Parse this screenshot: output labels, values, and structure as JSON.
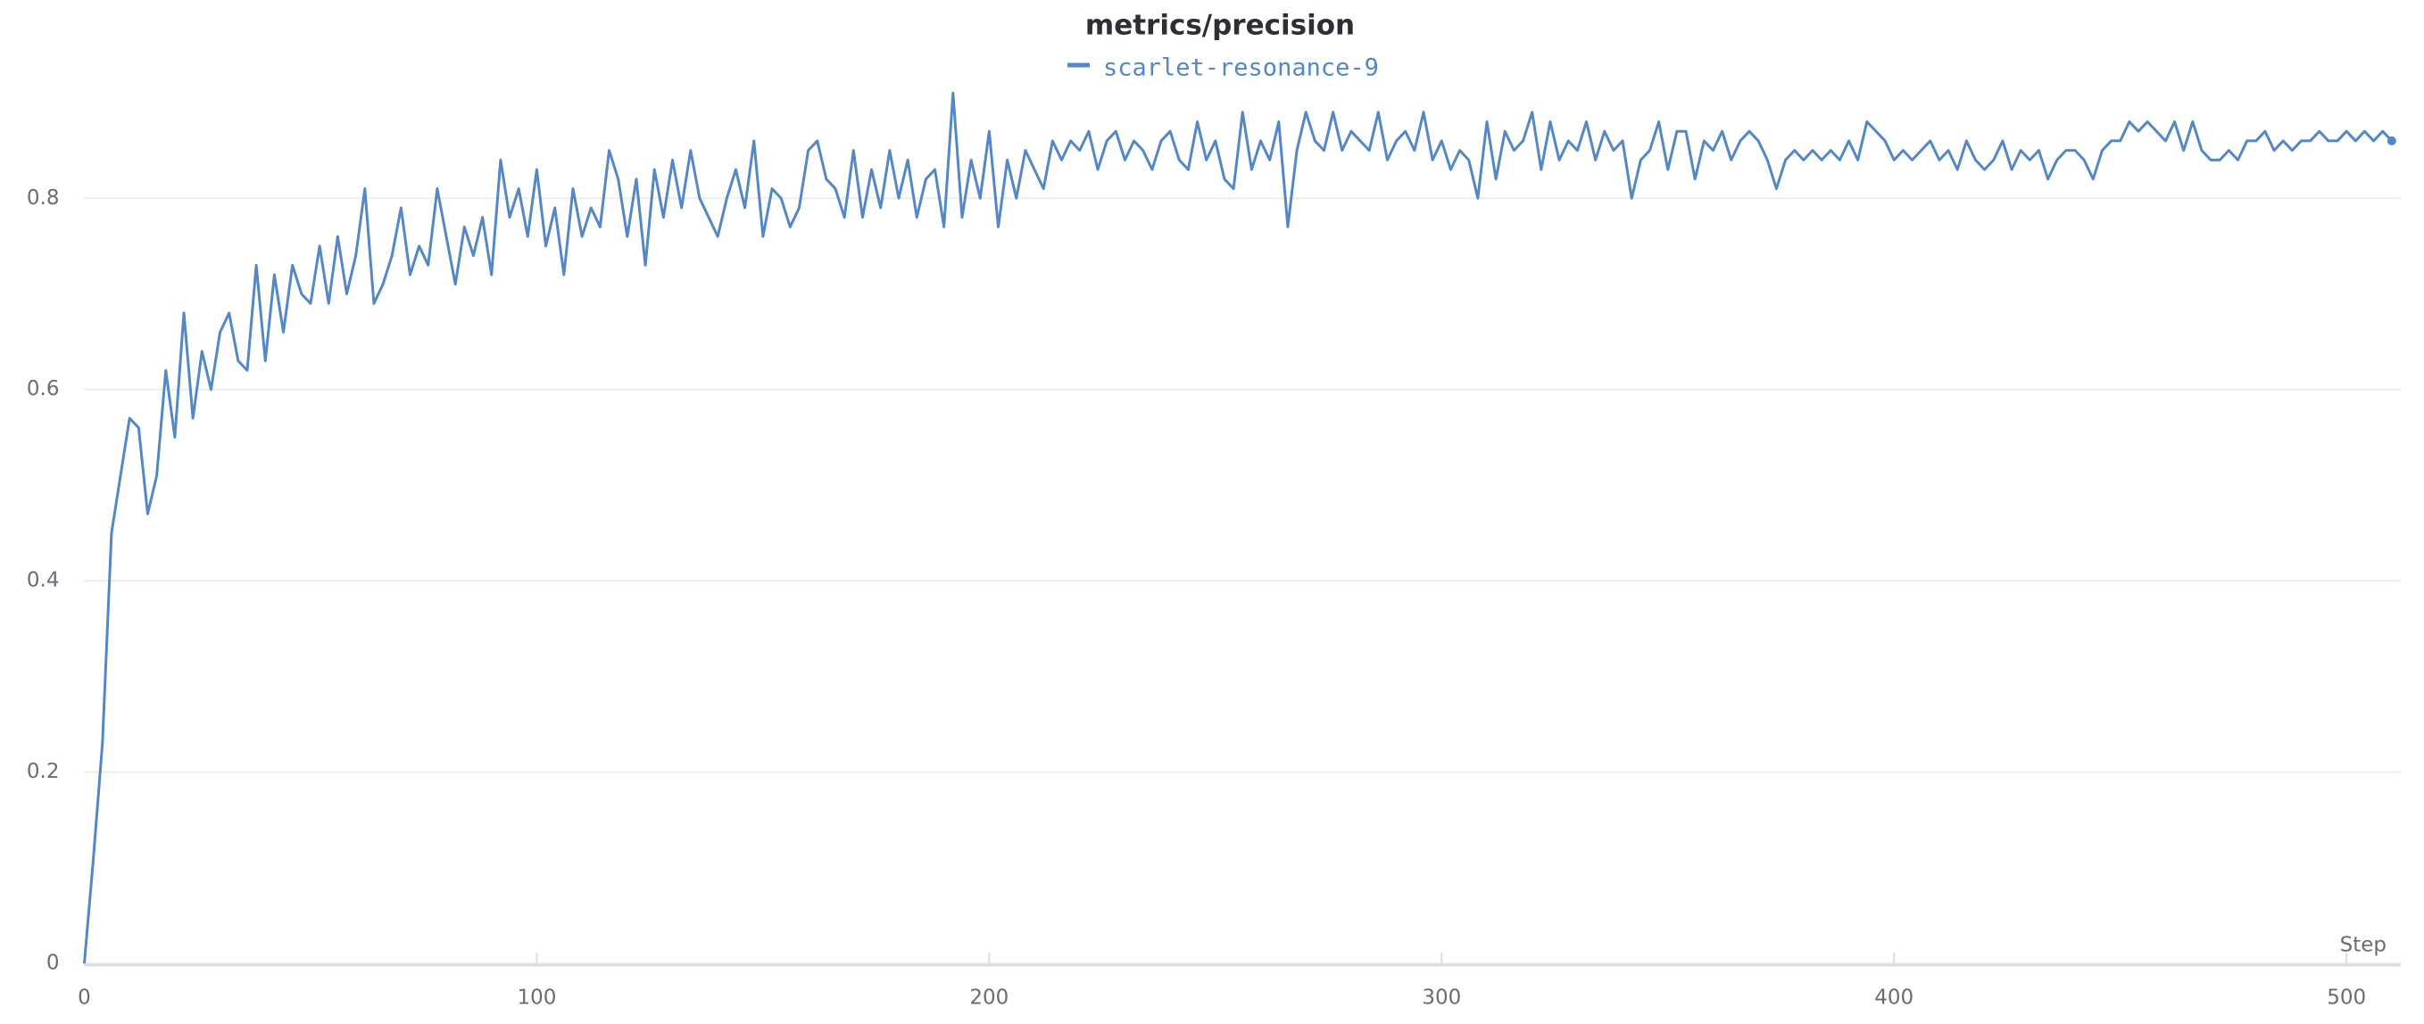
{
  "chart_data": {
    "type": "line",
    "title": "metrics/precision",
    "xlabel": "Step",
    "xlim": [
      0,
      512
    ],
    "xticks": [
      0,
      100,
      200,
      300,
      400,
      500
    ],
    "ylim": [
      0,
      0.92
    ],
    "yticks": [
      0,
      0.2,
      0.4,
      0.6,
      0.8
    ],
    "grid": true,
    "x": [
      0,
      2,
      4,
      6,
      8,
      10,
      12,
      14,
      16,
      18,
      20,
      22,
      24,
      26,
      28,
      30,
      32,
      34,
      36,
      38,
      40,
      42,
      44,
      46,
      48,
      50,
      52,
      54,
      56,
      58,
      60,
      62,
      64,
      66,
      68,
      70,
      72,
      74,
      76,
      78,
      80,
      82,
      84,
      86,
      88,
      90,
      92,
      94,
      96,
      98,
      100,
      102,
      104,
      106,
      108,
      110,
      112,
      114,
      116,
      118,
      120,
      122,
      124,
      126,
      128,
      130,
      132,
      134,
      136,
      138,
      140,
      142,
      144,
      146,
      148,
      150,
      152,
      154,
      156,
      158,
      160,
      162,
      164,
      166,
      168,
      170,
      172,
      174,
      176,
      178,
      180,
      182,
      184,
      186,
      188,
      190,
      192,
      194,
      196,
      198,
      200,
      202,
      204,
      206,
      208,
      210,
      212,
      214,
      216,
      218,
      220,
      222,
      224,
      226,
      228,
      230,
      232,
      234,
      236,
      238,
      240,
      242,
      244,
      246,
      248,
      250,
      252,
      254,
      256,
      258,
      260,
      262,
      264,
      266,
      268,
      270,
      272,
      274,
      276,
      278,
      280,
      282,
      284,
      286,
      288,
      290,
      292,
      294,
      296,
      298,
      300,
      302,
      304,
      306,
      308,
      310,
      312,
      314,
      316,
      318,
      320,
      322,
      324,
      326,
      328,
      330,
      332,
      334,
      336,
      338,
      340,
      342,
      344,
      346,
      348,
      350,
      352,
      354,
      356,
      358,
      360,
      362,
      364,
      366,
      368,
      370,
      372,
      374,
      376,
      378,
      380,
      382,
      384,
      386,
      388,
      390,
      392,
      394,
      396,
      398,
      400,
      402,
      404,
      406,
      408,
      410,
      412,
      414,
      416,
      418,
      420,
      422,
      424,
      426,
      428,
      430,
      432,
      434,
      436,
      438,
      440,
      442,
      444,
      446,
      448,
      450,
      452,
      454,
      456,
      458,
      460,
      462,
      464,
      466,
      468,
      470,
      472,
      474,
      476,
      478,
      480,
      482,
      484,
      486,
      488,
      490,
      492,
      494,
      496,
      498,
      500,
      502,
      504,
      506,
      508,
      510
    ],
    "series": [
      {
        "name": "scarlet-resonance-9",
        "color": "#5387c6",
        "values": [
          0.0,
          0.11,
          0.23,
          0.45,
          0.51,
          0.57,
          0.56,
          0.47,
          0.51,
          0.62,
          0.55,
          0.68,
          0.57,
          0.64,
          0.6,
          0.66,
          0.68,
          0.63,
          0.62,
          0.73,
          0.63,
          0.72,
          0.66,
          0.73,
          0.7,
          0.69,
          0.75,
          0.69,
          0.76,
          0.7,
          0.74,
          0.81,
          0.69,
          0.71,
          0.74,
          0.79,
          0.72,
          0.75,
          0.73,
          0.81,
          0.76,
          0.71,
          0.77,
          0.74,
          0.78,
          0.72,
          0.84,
          0.78,
          0.81,
          0.76,
          0.83,
          0.75,
          0.79,
          0.72,
          0.81,
          0.76,
          0.79,
          0.77,
          0.85,
          0.82,
          0.76,
          0.82,
          0.73,
          0.83,
          0.78,
          0.84,
          0.79,
          0.85,
          0.8,
          0.78,
          0.76,
          0.8,
          0.83,
          0.79,
          0.86,
          0.76,
          0.81,
          0.8,
          0.77,
          0.79,
          0.85,
          0.86,
          0.82,
          0.81,
          0.78,
          0.85,
          0.78,
          0.83,
          0.79,
          0.85,
          0.8,
          0.84,
          0.78,
          0.82,
          0.83,
          0.77,
          0.91,
          0.78,
          0.84,
          0.8,
          0.87,
          0.77,
          0.84,
          0.8,
          0.85,
          0.83,
          0.81,
          0.86,
          0.84,
          0.86,
          0.85,
          0.87,
          0.83,
          0.86,
          0.87,
          0.84,
          0.86,
          0.85,
          0.83,
          0.86,
          0.87,
          0.84,
          0.83,
          0.88,
          0.84,
          0.86,
          0.82,
          0.81,
          0.89,
          0.83,
          0.86,
          0.84,
          0.88,
          0.77,
          0.85,
          0.89,
          0.86,
          0.85,
          0.89,
          0.85,
          0.87,
          0.86,
          0.85,
          0.89,
          0.84,
          0.86,
          0.87,
          0.85,
          0.89,
          0.84,
          0.86,
          0.83,
          0.85,
          0.84,
          0.8,
          0.88,
          0.82,
          0.87,
          0.85,
          0.86,
          0.89,
          0.83,
          0.88,
          0.84,
          0.86,
          0.85,
          0.88,
          0.84,
          0.87,
          0.85,
          0.86,
          0.8,
          0.84,
          0.85,
          0.88,
          0.83,
          0.87,
          0.87,
          0.82,
          0.86,
          0.85,
          0.87,
          0.84,
          0.86,
          0.87,
          0.86,
          0.84,
          0.81,
          0.84,
          0.85,
          0.84,
          0.85,
          0.84,
          0.85,
          0.84,
          0.86,
          0.84,
          0.88,
          0.87,
          0.86,
          0.84,
          0.85,
          0.84,
          0.85,
          0.86,
          0.84,
          0.85,
          0.83,
          0.86,
          0.84,
          0.83,
          0.84,
          0.86,
          0.83,
          0.85,
          0.84,
          0.85,
          0.82,
          0.84,
          0.85,
          0.85,
          0.84,
          0.82,
          0.85,
          0.86,
          0.86,
          0.88,
          0.87,
          0.88,
          0.87,
          0.86,
          0.88,
          0.85,
          0.88,
          0.85,
          0.84,
          0.84,
          0.85,
          0.84,
          0.86,
          0.86,
          0.87,
          0.85,
          0.86,
          0.85,
          0.86,
          0.86,
          0.87,
          0.86,
          0.86,
          0.87,
          0.86,
          0.87,
          0.86,
          0.87,
          0.86
        ]
      }
    ]
  }
}
